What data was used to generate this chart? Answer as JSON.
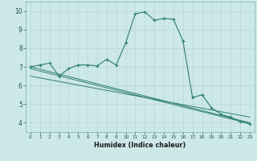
{
  "xlabel": "Humidex (Indice chaleur)",
  "ylabel": "",
  "bg_color": "#cde8e8",
  "line_color": "#2d7d6e",
  "grid_color": "#b8d8d8",
  "xlim": [
    -0.5,
    23.5
  ],
  "ylim": [
    3.5,
    10.5
  ],
  "xticks": [
    0,
    1,
    2,
    3,
    4,
    5,
    6,
    7,
    8,
    9,
    10,
    11,
    12,
    13,
    14,
    15,
    16,
    17,
    18,
    19,
    20,
    21,
    22,
    23
  ],
  "yticks": [
    4,
    5,
    6,
    7,
    8,
    9,
    10
  ],
  "series": [
    {
      "x": [
        0,
        1,
        2,
        3,
        4,
        5,
        6,
        7,
        8,
        9,
        10,
        11,
        12,
        13,
        14,
        15,
        16,
        17,
        18,
        19,
        20,
        21,
        22,
        23
      ],
      "y": [
        7.0,
        7.1,
        7.2,
        6.5,
        6.9,
        7.1,
        7.1,
        7.05,
        7.4,
        7.1,
        8.3,
        9.85,
        9.95,
        9.5,
        9.6,
        9.55,
        8.4,
        5.35,
        5.5,
        4.8,
        4.45,
        4.3,
        4.05,
        3.95
      ]
    },
    {
      "x": [
        0,
        23
      ],
      "y": [
        7.0,
        4.0
      ]
    },
    {
      "x": [
        0,
        23
      ],
      "y": [
        6.9,
        3.95
      ]
    },
    {
      "x": [
        0,
        23
      ],
      "y": [
        6.5,
        4.3
      ]
    }
  ]
}
